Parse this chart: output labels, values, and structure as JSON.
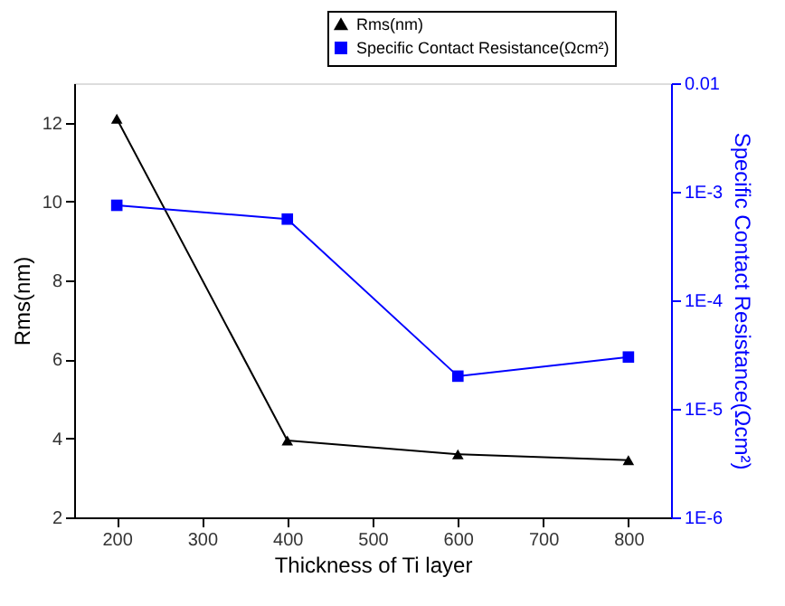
{
  "chart_data": {
    "type": "line",
    "xlabel": "Thickness of Ti layer",
    "ylabel": "Rms(nm)",
    "y2label": "Specific Contact Resistance(Ωcm²)",
    "x": [
      200,
      400,
      600,
      800
    ],
    "series": [
      {
        "name": "Rms(nm)",
        "color": "#000000",
        "marker": "triangle",
        "values": [
          12.1,
          3.95,
          3.6,
          3.45
        ]
      },
      {
        "name": "Specific Contact Resistance(Ωcm²)",
        "color": "#0000ff",
        "marker": "square",
        "axis": "y2",
        "values": [
          0.00075,
          0.00056,
          2e-05,
          3e-05
        ]
      }
    ],
    "xlim": [
      150,
      850
    ],
    "xticks": [
      200,
      300,
      400,
      500,
      600,
      700,
      800
    ],
    "ylim": [
      2,
      13
    ],
    "yticks": [
      2,
      4,
      6,
      8,
      10,
      12
    ],
    "y2lim": [
      1e-06,
      0.01
    ],
    "y2ticks": [
      {
        "value": 1e-06,
        "label": "1E-6"
      },
      {
        "value": 1e-05,
        "label": "1E-5"
      },
      {
        "value": 0.0001,
        "label": "1E-4"
      },
      {
        "value": 0.001,
        "label": "1E-3"
      },
      0.01
    ],
    "log": "y2",
    "grid": false,
    "legend": "top right",
    "line_style": "solid"
  }
}
